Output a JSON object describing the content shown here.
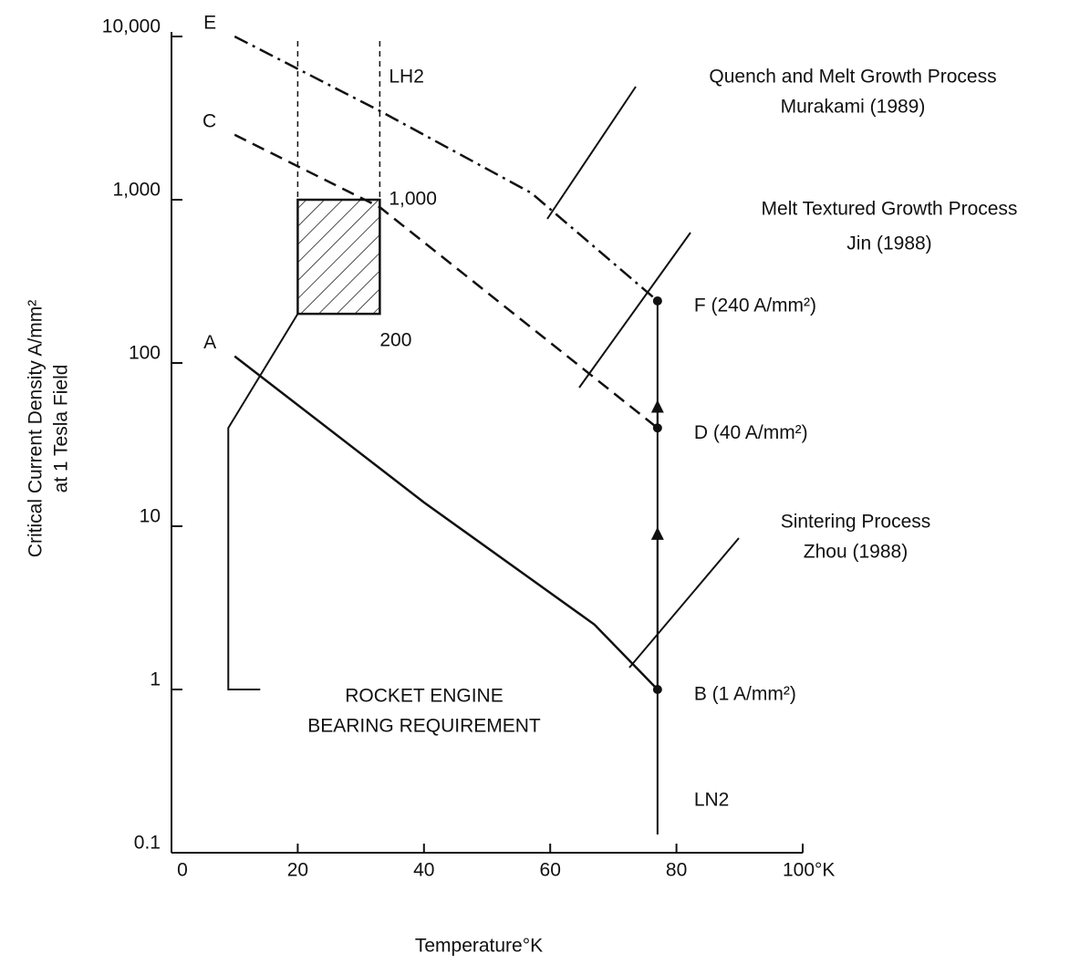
{
  "chart_data": {
    "type": "line",
    "ylog": true,
    "xlabel": "Temperature°K",
    "ylabel": [
      "Critical Current Density A/mm²",
      "at 1 Tesla Field"
    ],
    "xlim": [
      0,
      100
    ],
    "xticks": [
      0,
      20,
      40,
      60,
      80,
      {
        "value": 100,
        "label": "100°K"
      }
    ],
    "ylim": [
      0.1,
      10000
    ],
    "yticks": [
      0.1,
      1,
      10,
      100,
      {
        "value": 1000,
        "label": "1,000"
      },
      {
        "value": 10000,
        "label": "10,000"
      }
    ],
    "series": [
      {
        "start_label": "E",
        "end_label": "F (240 A/mm²)",
        "process": [
          "Quench and Melt Growth Process",
          "Murakami (1989)"
        ],
        "style": "dashdot",
        "color": "#111",
        "x": [
          10,
          33,
          57,
          77
        ],
        "values": [
          10000,
          3500,
          1100,
          240
        ]
      },
      {
        "start_label": "C",
        "end_label": "D  (40 A/mm²)",
        "process": [
          "Melt Textured Growth Process",
          "Jin (1988)"
        ],
        "style": "dashed",
        "color": "#111",
        "x": [
          10,
          33,
          77
        ],
        "values": [
          2500,
          900,
          40
        ]
      },
      {
        "start_label": "A",
        "end_label": "B (1 A/mm²)",
        "process": [
          "Sintering Process",
          "Zhou (1988)"
        ],
        "style": "solid",
        "color": "#111",
        "x": [
          10,
          40,
          67,
          77
        ],
        "values": [
          110,
          14,
          2.5,
          1
        ]
      }
    ],
    "lh2": {
      "label": "LH2",
      "x": [
        20,
        33
      ]
    },
    "ln2": {
      "label": "LN2",
      "x": 77
    },
    "box": {
      "xlim": [
        20,
        33
      ],
      "ylim": [
        200,
        1000
      ],
      "labels": [
        {
          "value": 1000,
          "label": "1,000"
        },
        200
      ]
    },
    "requirement": {
      "text": [
        "ROCKET ENGINE",
        "BEARING REQUIREMENT"
      ],
      "x": 9,
      "ylim": [
        1,
        40
      ]
    }
  }
}
